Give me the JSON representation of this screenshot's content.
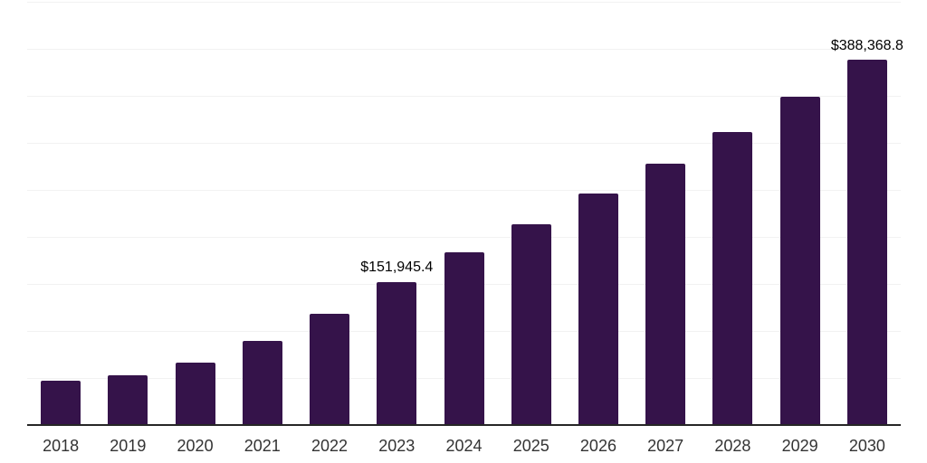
{
  "chart_data": {
    "type": "bar",
    "title": "",
    "categories": [
      "2018",
      "2019",
      "2020",
      "2021",
      "2022",
      "2023",
      "2024",
      "2025",
      "2026",
      "2027",
      "2028",
      "2029",
      "2030"
    ],
    "values": [
      47100,
      52900,
      65900,
      89400,
      118300,
      151945.4,
      183600,
      213700,
      246100,
      277900,
      311500,
      348700,
      388368.8
    ],
    "data_labels": {
      "2023": "$151,945.4",
      "2030": "$388,368.8"
    },
    "xlabel": "",
    "ylabel": "",
    "ylim": [
      0,
      450000
    ],
    "gridline_step": 50000,
    "grid": true,
    "legend": "none",
    "yaxis_tick_labels": "hidden",
    "colors": {
      "bar": "#35134a",
      "axis_line": "#262626",
      "gridline": "#f2f2f2",
      "xtick_text": "#333333",
      "data_label_text": "#000000",
      "background": "#ffffff"
    }
  }
}
